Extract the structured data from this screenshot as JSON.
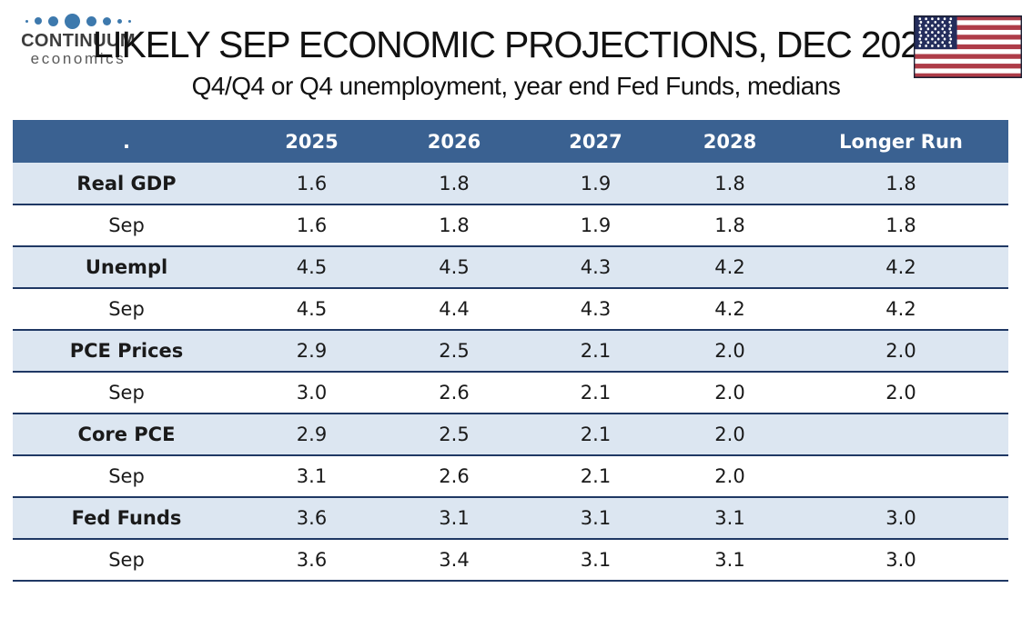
{
  "logo": {
    "line1": "CONTINUUM",
    "line2": "economics",
    "dot_sizes": [
      3,
      8,
      11,
      17,
      11,
      9,
      5,
      3
    ]
  },
  "header": {
    "title": "LIKELY SEP ECONOMIC PROJECTIONS, DEC 2025",
    "subtitle": "Q4/Q4 or Q4 unemployment, year end Fed Funds, medians",
    "flag_icon": "us-flag-icon"
  },
  "colors": {
    "header_bg": "#3a6191",
    "row_shade": "#dce6f1",
    "divider": "#1f3864",
    "header_text": "#ffffff",
    "cell_text": "#1a1a1a",
    "flag_red": "#ae3c48",
    "flag_blue": "#242d5c",
    "dot_blue": "#3d79ad",
    "logo_dark": "#3d3d3d",
    "logo_gray": "#595959"
  },
  "chart_data": {
    "type": "table",
    "title": "LIKELY SEP ECONOMIC PROJECTIONS, DEC 2025",
    "subtitle": "Q4/Q4 or Q4 unemployment, year end Fed Funds, medians",
    "columns": [
      ".",
      "2025",
      "2026",
      "2027",
      "2028",
      "Longer Run"
    ],
    "rows": [
      {
        "label": "Real GDP",
        "emphasis": true,
        "values": [
          "1.6",
          "1.8",
          "1.9",
          "1.8",
          "1.8"
        ]
      },
      {
        "label": "Sep",
        "emphasis": false,
        "values": [
          "1.6",
          "1.8",
          "1.9",
          "1.8",
          "1.8"
        ]
      },
      {
        "label": "Unempl",
        "emphasis": true,
        "values": [
          "4.5",
          "4.5",
          "4.3",
          "4.2",
          "4.2"
        ]
      },
      {
        "label": "Sep",
        "emphasis": false,
        "values": [
          "4.5",
          "4.4",
          "4.3",
          "4.2",
          "4.2"
        ]
      },
      {
        "label": "PCE Prices",
        "emphasis": true,
        "values": [
          "2.9",
          "2.5",
          "2.1",
          "2.0",
          "2.0"
        ]
      },
      {
        "label": "Sep",
        "emphasis": false,
        "values": [
          "3.0",
          "2.6",
          "2.1",
          "2.0",
          "2.0"
        ]
      },
      {
        "label": "Core PCE",
        "emphasis": true,
        "values": [
          "2.9",
          "2.5",
          "2.1",
          "2.0",
          ""
        ]
      },
      {
        "label": "Sep",
        "emphasis": false,
        "values": [
          "3.1",
          "2.6",
          "2.1",
          "2.0",
          ""
        ]
      },
      {
        "label": "Fed Funds",
        "emphasis": true,
        "values": [
          "3.6",
          "3.1",
          "3.1",
          "3.1",
          "3.0"
        ]
      },
      {
        "label": "Sep",
        "emphasis": false,
        "values": [
          "3.6",
          "3.4",
          "3.1",
          "3.1",
          "3.0"
        ]
      }
    ]
  }
}
